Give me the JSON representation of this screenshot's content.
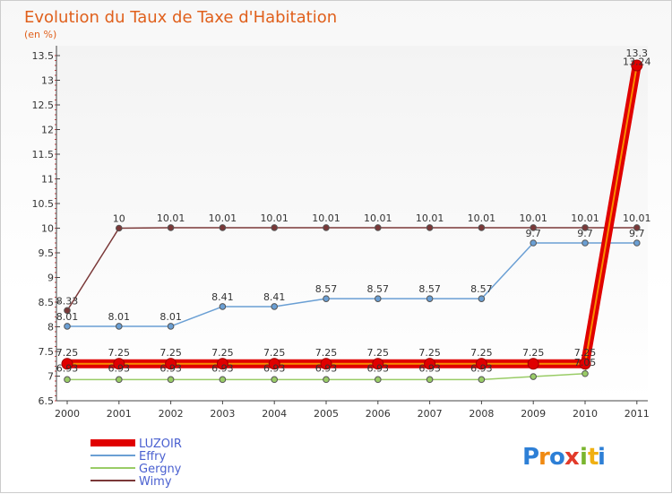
{
  "chart_data": {
    "type": "line",
    "title": "Evolution du Taux de Taxe d'Habitation",
    "subtitle": "(en %)",
    "categories": [
      "2000",
      "2001",
      "2002",
      "2003",
      "2004",
      "2005",
      "2006",
      "2007",
      "2008",
      "2009",
      "2010",
      "2011"
    ],
    "ylim": [
      6.5,
      13.5
    ],
    "yticks": [
      "6.5",
      "7",
      "7.5",
      "8",
      "8.5",
      "9",
      "9.5",
      "10",
      "10.5",
      "11",
      "11.5",
      "12",
      "12.5",
      "13",
      "13.5"
    ],
    "grid": false,
    "legend_position": "bottom-left",
    "series": [
      {
        "name": "LUZOIR",
        "color": "#e00000",
        "values": [
          7.25,
          7.25,
          7.25,
          7.25,
          7.25,
          7.25,
          7.25,
          7.25,
          7.25,
          7.25,
          7.25,
          13.3
        ],
        "labels": [
          "7.25",
          "7.25",
          "7.25",
          "7.25",
          "7.25",
          "7.25",
          "7.25",
          "7.25",
          "7.25",
          "7.25",
          "7.25",
          "13.3"
        ]
      },
      {
        "name": "Effry",
        "color": "#6a9fd4",
        "values": [
          8.01,
          8.01,
          8.01,
          8.41,
          8.41,
          8.57,
          8.57,
          8.57,
          8.57,
          9.7,
          9.7,
          9.7
        ],
        "labels": [
          "8.01",
          "8.01",
          "8.01",
          "8.41",
          "8.41",
          "8.57",
          "8.57",
          "8.57",
          "8.57",
          "9.7",
          "9.7",
          "9.7"
        ]
      },
      {
        "name": "Gergny",
        "color": "#99cc66",
        "values": [
          6.93,
          6.93,
          6.93,
          6.93,
          6.93,
          6.93,
          6.93,
          6.93,
          6.93,
          6.99,
          7.05,
          13.24
        ],
        "labels": [
          "6.93",
          "6.93",
          "6.93",
          "6.93",
          "6.93",
          "6.93",
          "6.93",
          "6.93",
          "6.93",
          "",
          "7.05",
          "13.24"
        ]
      },
      {
        "name": "Wimy",
        "color": "#7a3838",
        "values": [
          8.33,
          10.0,
          10.01,
          10.01,
          10.01,
          10.01,
          10.01,
          10.01,
          10.01,
          10.01,
          10.01,
          10.01
        ],
        "labels": [
          "8.33",
          "10",
          "10.01",
          "10.01",
          "10.01",
          "10.01",
          "10.01",
          "10.01",
          "10.01",
          "10.01",
          "10.01",
          "10.01"
        ]
      }
    ]
  },
  "logo": {
    "letters": [
      "P",
      "r",
      "o",
      "x",
      "i",
      "t",
      "i"
    ],
    "colors": [
      "#2d7fd6",
      "#f08a12",
      "#2d7fd6",
      "#e23a2a",
      "#7ab52e",
      "#f0b012",
      "#2d7fd6"
    ]
  }
}
